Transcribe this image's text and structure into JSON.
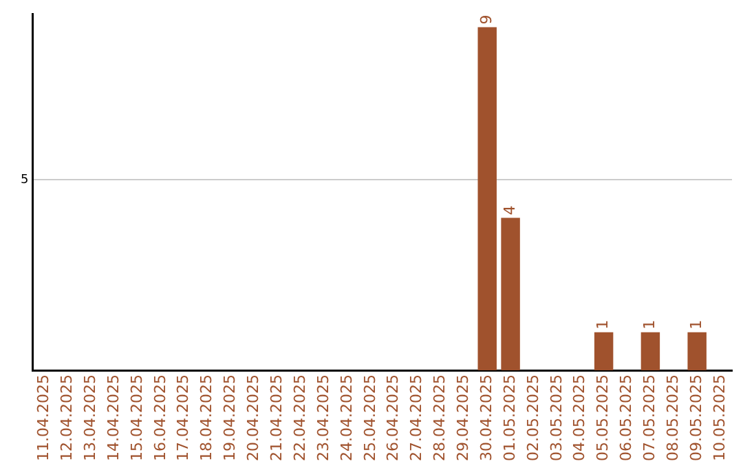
{
  "chart_data": {
    "type": "bar",
    "categories": [
      "11.04.2025",
      "12.04.2025",
      "13.04.2025",
      "14.04.2025",
      "15.04.2025",
      "16.04.2025",
      "17.04.2025",
      "18.04.2025",
      "19.04.2025",
      "20.04.2025",
      "21.04.2025",
      "22.04.2025",
      "23.04.2025",
      "24.04.2025",
      "25.04.2025",
      "26.04.2025",
      "27.04.2025",
      "28.04.2025",
      "29.04.2025",
      "30.04.2025",
      "01.05.2025",
      "02.05.2025",
      "03.05.2025",
      "04.05.2025",
      "05.05.2025",
      "06.05.2025",
      "07.05.2025",
      "08.05.2025",
      "09.05.2025",
      "10.05.2025"
    ],
    "values": [
      null,
      null,
      null,
      null,
      null,
      null,
      null,
      null,
      null,
      null,
      null,
      null,
      null,
      null,
      null,
      null,
      null,
      null,
      null,
      9,
      4,
      null,
      null,
      null,
      1,
      null,
      1,
      null,
      1,
      null
    ],
    "data_labels": true,
    "color": "#a0522d",
    "ylim": [
      0,
      9.35
    ],
    "yticks": [
      5
    ],
    "grid": "y",
    "legend": false
  }
}
